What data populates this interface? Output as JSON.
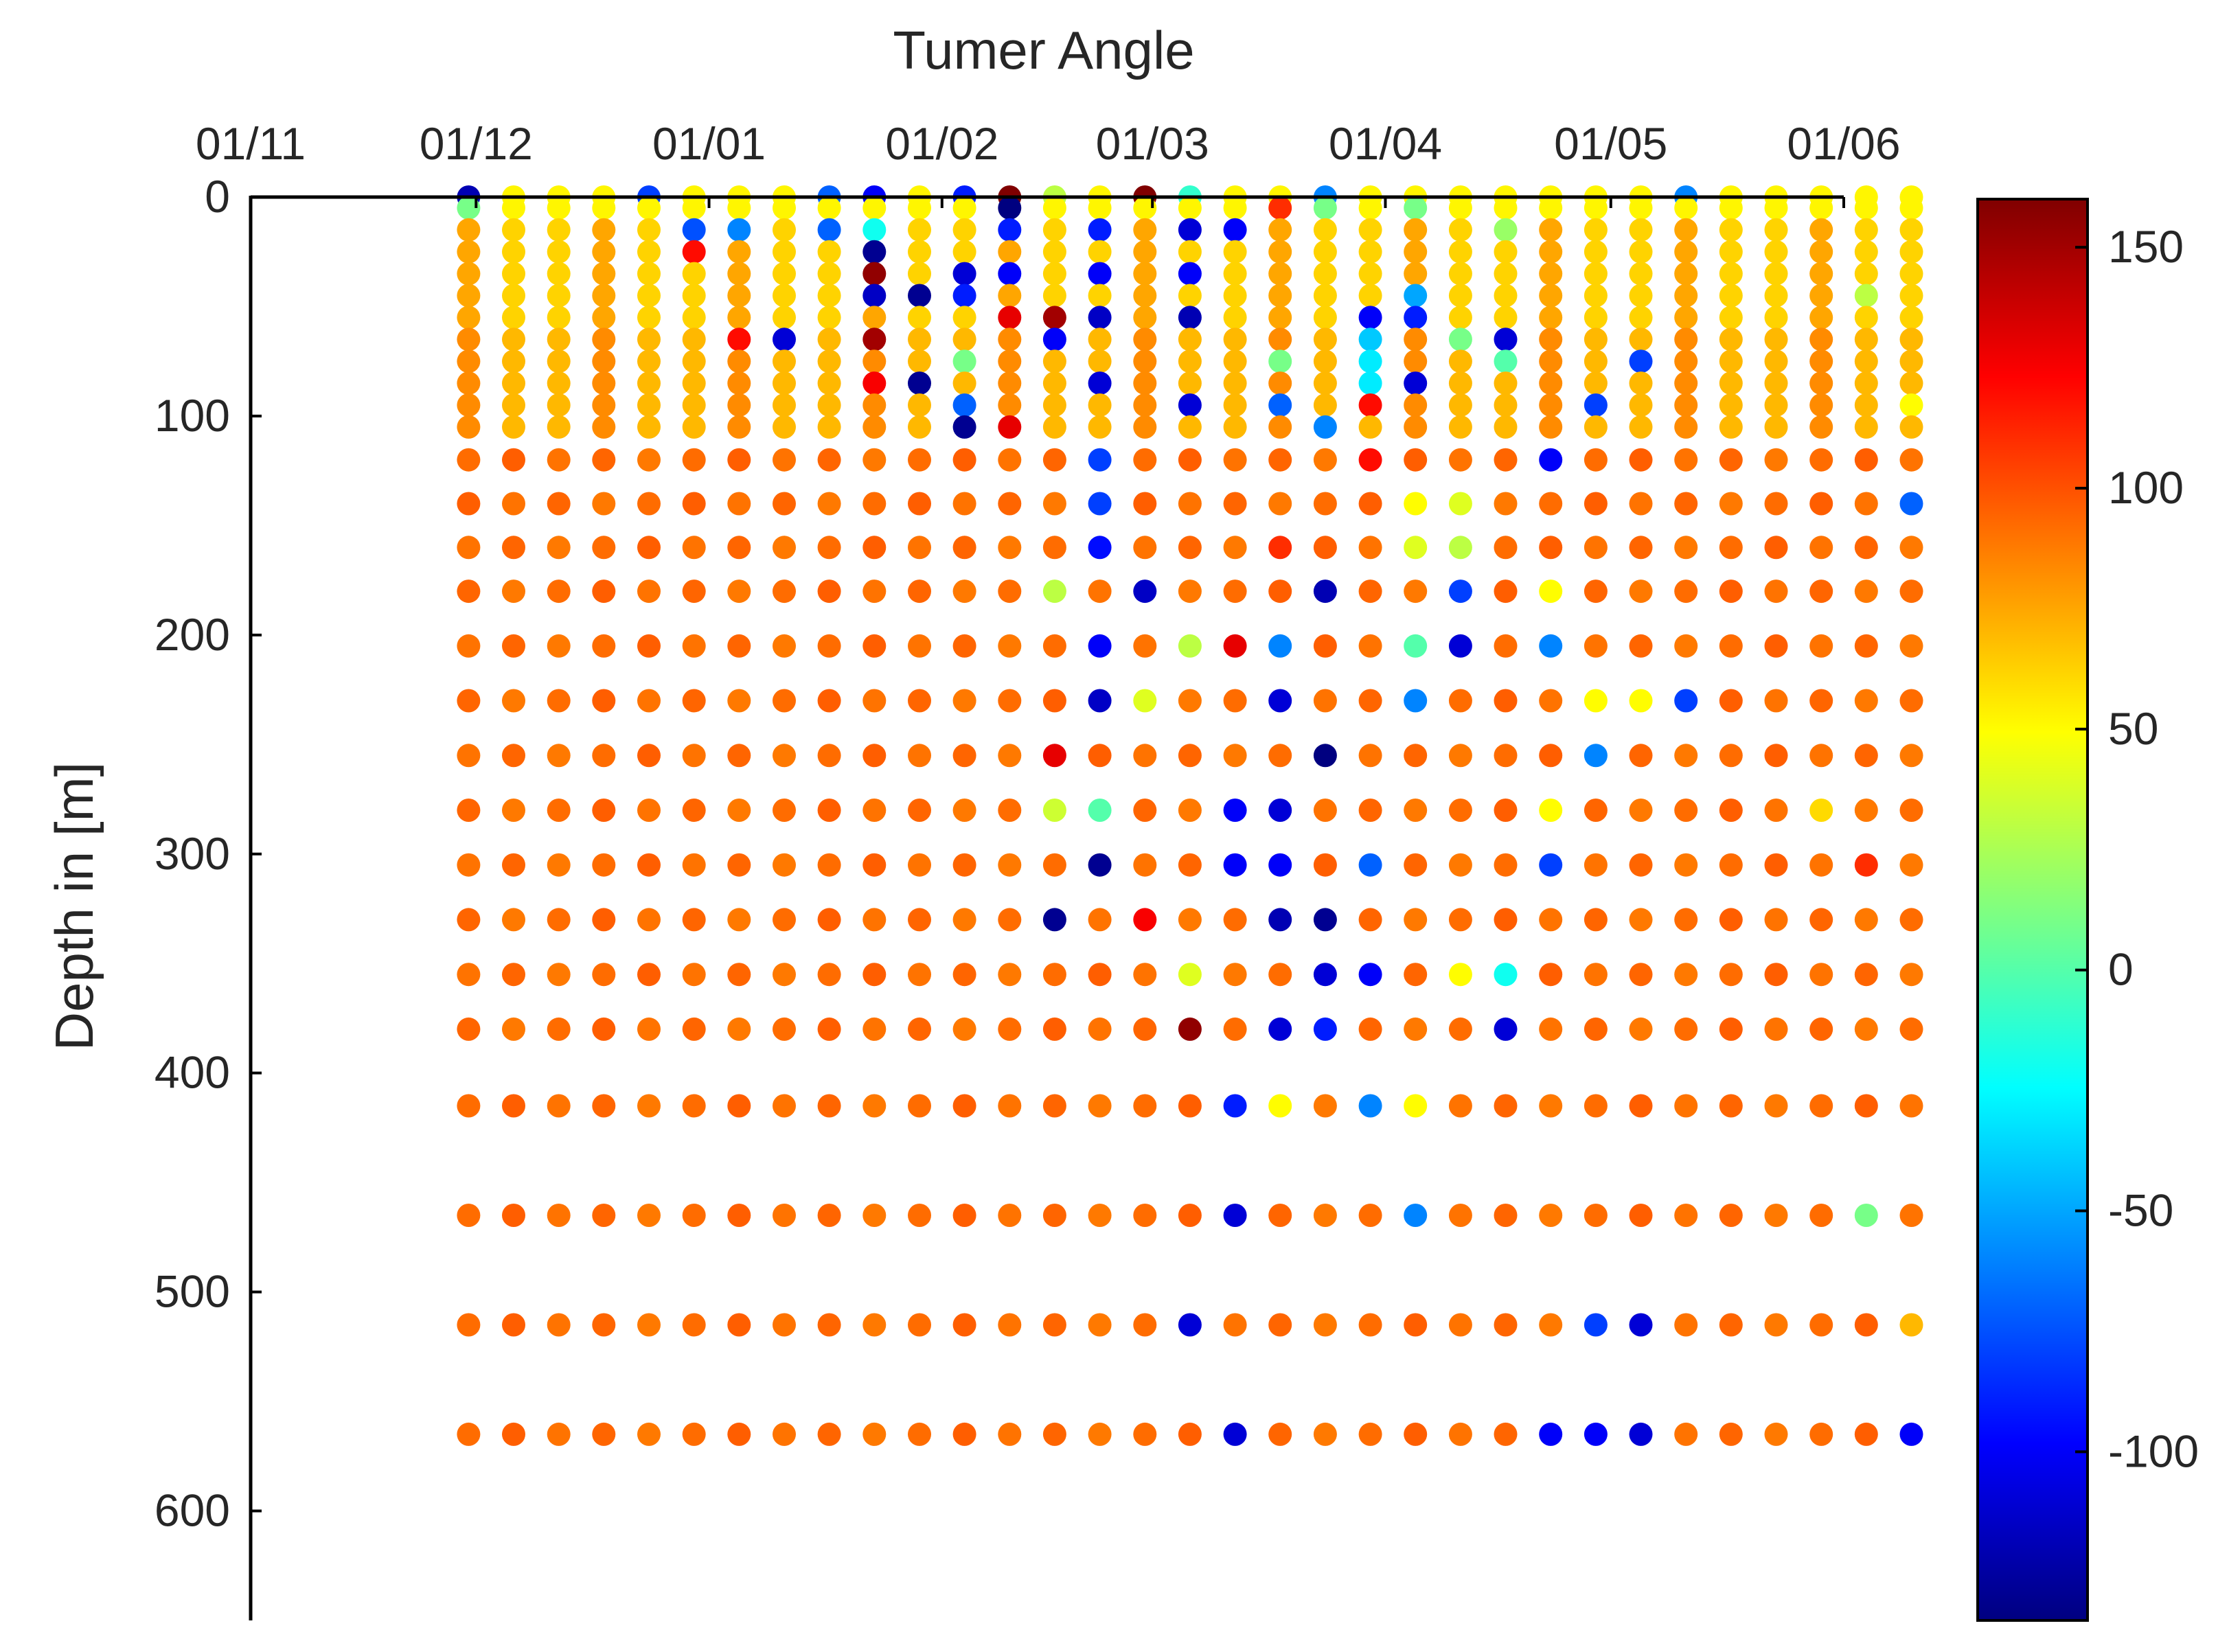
{
  "chart_data": {
    "type": "scatter",
    "title": "Tumer Angle",
    "xlabel": "",
    "ylabel": "Depth in [m]",
    "x_axis_position": "top",
    "y_reversed": true,
    "xlim": [
      "2020-11-01",
      "2021-06-01"
    ],
    "ylim": [
      0,
      650
    ],
    "xticks": [
      "01/11",
      "01/12",
      "01/01",
      "01/02",
      "01/03",
      "01/04",
      "01/05",
      "01/06"
    ],
    "yticks": [
      "0",
      "100",
      "200",
      "300",
      "400",
      "500",
      "600"
    ],
    "colormap": "jet",
    "clim": [
      -135,
      160
    ],
    "colorbar_ticks": [
      "150",
      "100",
      "50",
      "0",
      "-50",
      "-100"
    ],
    "grid": false,
    "legend": "none",
    "dates": [
      "2020-11-30",
      "2020-12-06",
      "2020-12-12",
      "2020-12-18",
      "2020-12-24",
      "2020-12-30",
      "2021-01-05",
      "2021-01-11",
      "2021-01-17",
      "2021-01-23",
      "2021-01-29",
      "2021-02-04",
      "2021-02-10",
      "2021-02-16",
      "2021-02-22",
      "2021-02-28",
      "2021-03-06",
      "2021-03-12",
      "2021-03-18",
      "2021-03-24",
      "2021-03-30",
      "2021-04-05",
      "2021-04-11",
      "2021-04-17",
      "2021-04-23",
      "2021-04-29",
      "2021-05-05",
      "2021-05-11",
      "2021-05-17",
      "2021-05-23",
      "2021-05-29",
      "2021-06-04",
      "2021-06-10"
    ],
    "depths": [
      0,
      5,
      15,
      25,
      35,
      45,
      55,
      65,
      75,
      85,
      95,
      105,
      120,
      140,
      160,
      180,
      205,
      230,
      255,
      280,
      305,
      330,
      355,
      380,
      415,
      465,
      515,
      565
    ],
    "anomalies": [
      {
        "date": "2020-11-30",
        "depth": 0,
        "value": -120
      },
      {
        "date": "2020-11-30",
        "depth": 5,
        "value": 10
      },
      {
        "date": "2020-12-24",
        "depth": 0,
        "value": -80
      },
      {
        "date": "2020-12-30",
        "depth": 15,
        "value": -75
      },
      {
        "date": "2020-12-30",
        "depth": 25,
        "value": 120
      },
      {
        "date": "2021-01-05",
        "depth": 15,
        "value": -60
      },
      {
        "date": "2021-01-05",
        "depth": 65,
        "value": 120
      },
      {
        "date": "2021-01-11",
        "depth": 65,
        "value": -110
      },
      {
        "date": "2021-01-17",
        "depth": 0,
        "value": -70
      },
      {
        "date": "2021-01-17",
        "depth": 15,
        "value": -70
      },
      {
        "date": "2021-01-23",
        "depth": 0,
        "value": -100
      },
      {
        "date": "2021-01-23",
        "depth": 15,
        "value": -20
      },
      {
        "date": "2021-01-23",
        "depth": 25,
        "value": -130
      },
      {
        "date": "2021-01-23",
        "depth": 35,
        "value": 155
      },
      {
        "date": "2021-01-23",
        "depth": 45,
        "value": -115
      },
      {
        "date": "2021-01-23",
        "depth": 65,
        "value": 150
      },
      {
        "date": "2021-01-23",
        "depth": 85,
        "value": 125
      },
      {
        "date": "2021-01-29",
        "depth": 45,
        "value": -130
      },
      {
        "date": "2021-01-29",
        "depth": 85,
        "value": -130
      },
      {
        "date": "2021-02-04",
        "depth": 0,
        "value": -90
      },
      {
        "date": "2021-02-04",
        "depth": 35,
        "value": -110
      },
      {
        "date": "2021-02-04",
        "depth": 45,
        "value": -90
      },
      {
        "date": "2021-02-04",
        "depth": 75,
        "value": 10
      },
      {
        "date": "2021-02-04",
        "depth": 95,
        "value": -70
      },
      {
        "date": "2021-02-04",
        "depth": 105,
        "value": -130
      },
      {
        "date": "2021-02-10",
        "depth": 0,
        "value": 160
      },
      {
        "date": "2021-02-10",
        "depth": 5,
        "value": -135
      },
      {
        "date": "2021-02-10",
        "depth": 15,
        "value": -90
      },
      {
        "date": "2021-02-10",
        "depth": 35,
        "value": -100
      },
      {
        "date": "2021-02-10",
        "depth": 55,
        "value": 130
      },
      {
        "date": "2021-02-10",
        "depth": 105,
        "value": 130
      },
      {
        "date": "2021-02-16",
        "depth": 0,
        "value": 30
      },
      {
        "date": "2021-02-16",
        "depth": 55,
        "value": 150
      },
      {
        "date": "2021-02-16",
        "depth": 65,
        "value": -100
      },
      {
        "date": "2021-02-16",
        "depth": 180,
        "value": 30
      },
      {
        "date": "2021-02-16",
        "depth": 255,
        "value": 130
      },
      {
        "date": "2021-02-16",
        "depth": 280,
        "value": 35
      },
      {
        "date": "2021-02-16",
        "depth": 330,
        "value": -130
      },
      {
        "date": "2021-02-22",
        "depth": 15,
        "value": -90
      },
      {
        "date": "2021-02-22",
        "depth": 35,
        "value": -100
      },
      {
        "date": "2021-02-22",
        "depth": 55,
        "value": -115
      },
      {
        "date": "2021-02-22",
        "depth": 85,
        "value": -110
      },
      {
        "date": "2021-02-22",
        "depth": 120,
        "value": -80
      },
      {
        "date": "2021-02-22",
        "depth": 140,
        "value": -80
      },
      {
        "date": "2021-02-22",
        "depth": 160,
        "value": -95
      },
      {
        "date": "2021-02-22",
        "depth": 205,
        "value": -100
      },
      {
        "date": "2021-02-22",
        "depth": 230,
        "value": -115
      },
      {
        "date": "2021-02-22",
        "depth": 280,
        "value": 0
      },
      {
        "date": "2021-02-22",
        "depth": 305,
        "value": -130
      },
      {
        "date": "2021-02-28",
        "depth": 0,
        "value": 160
      },
      {
        "date": "2021-02-28",
        "depth": 180,
        "value": -115
      },
      {
        "date": "2021-02-28",
        "depth": 230,
        "value": 40
      },
      {
        "date": "2021-02-28",
        "depth": 330,
        "value": 125
      },
      {
        "date": "2021-03-06",
        "depth": 0,
        "value": -10
      },
      {
        "date": "2021-03-06",
        "depth": 15,
        "value": -110
      },
      {
        "date": "2021-03-06",
        "depth": 35,
        "value": -100
      },
      {
        "date": "2021-03-06",
        "depth": 55,
        "value": -120
      },
      {
        "date": "2021-03-06",
        "depth": 95,
        "value": -110
      },
      {
        "date": "2021-03-06",
        "depth": 205,
        "value": 30
      },
      {
        "date": "2021-03-06",
        "depth": 355,
        "value": 40
      },
      {
        "date": "2021-03-06",
        "depth": 380,
        "value": 155
      },
      {
        "date": "2021-03-06",
        "depth": 515,
        "value": -110
      },
      {
        "date": "2021-03-12",
        "depth": 15,
        "value": -100
      },
      {
        "date": "2021-03-12",
        "depth": 205,
        "value": 130
      },
      {
        "date": "2021-03-12",
        "depth": 280,
        "value": -100
      },
      {
        "date": "2021-03-12",
        "depth": 305,
        "value": -100
      },
      {
        "date": "2021-03-12",
        "depth": 415,
        "value": -90
      },
      {
        "date": "2021-03-12",
        "depth": 465,
        "value": -110
      },
      {
        "date": "2021-03-12",
        "depth": 565,
        "value": -110
      },
      {
        "date": "2021-03-18",
        "depth": 5,
        "value": 110
      },
      {
        "date": "2021-03-18",
        "depth": 75,
        "value": 10
      },
      {
        "date": "2021-03-18",
        "depth": 95,
        "value": -70
      },
      {
        "date": "2021-03-18",
        "depth": 160,
        "value": 110
      },
      {
        "date": "2021-03-18",
        "depth": 205,
        "value": -60
      },
      {
        "date": "2021-03-18",
        "depth": 230,
        "value": -110
      },
      {
        "date": "2021-03-18",
        "depth": 280,
        "value": -110
      },
      {
        "date": "2021-03-18",
        "depth": 305,
        "value": -100
      },
      {
        "date": "2021-03-18",
        "depth": 330,
        "value": -120
      },
      {
        "date": "2021-03-18",
        "depth": 380,
        "value": -110
      },
      {
        "date": "2021-03-18",
        "depth": 415,
        "value": 50
      },
      {
        "date": "2021-03-24",
        "depth": 0,
        "value": -60
      },
      {
        "date": "2021-03-24",
        "depth": 5,
        "value": 10
      },
      {
        "date": "2021-03-24",
        "depth": 105,
        "value": -60
      },
      {
        "date": "2021-03-24",
        "depth": 180,
        "value": -120
      },
      {
        "date": "2021-03-24",
        "depth": 255,
        "value": -135
      },
      {
        "date": "2021-03-24",
        "depth": 330,
        "value": -130
      },
      {
        "date": "2021-03-24",
        "depth": 355,
        "value": -110
      },
      {
        "date": "2021-03-24",
        "depth": 380,
        "value": -90
      },
      {
        "date": "2021-03-30",
        "depth": 55,
        "value": -100
      },
      {
        "date": "2021-03-30",
        "depth": 65,
        "value": -40
      },
      {
        "date": "2021-03-30",
        "depth": 75,
        "value": -30
      },
      {
        "date": "2021-03-30",
        "depth": 85,
        "value": -30
      },
      {
        "date": "2021-03-30",
        "depth": 95,
        "value": 120
      },
      {
        "date": "2021-03-30",
        "depth": 120,
        "value": 120
      },
      {
        "date": "2021-03-30",
        "depth": 305,
        "value": -70
      },
      {
        "date": "2021-03-30",
        "depth": 355,
        "value": -100
      },
      {
        "date": "2021-03-30",
        "depth": 415,
        "value": -60
      },
      {
        "date": "2021-04-05",
        "depth": 5,
        "value": 10
      },
      {
        "date": "2021-04-05",
        "depth": 45,
        "value": -50
      },
      {
        "date": "2021-04-05",
        "depth": 55,
        "value": -90
      },
      {
        "date": "2021-04-05",
        "depth": 85,
        "value": -110
      },
      {
        "date": "2021-04-05",
        "depth": 140,
        "value": 50
      },
      {
        "date": "2021-04-05",
        "depth": 160,
        "value": 40
      },
      {
        "date": "2021-04-05",
        "depth": 205,
        "value": 0
      },
      {
        "date": "2021-04-05",
        "depth": 230,
        "value": -60
      },
      {
        "date": "2021-04-05",
        "depth": 415,
        "value": 50
      },
      {
        "date": "2021-04-05",
        "depth": 465,
        "value": -60
      },
      {
        "date": "2021-04-11",
        "depth": 65,
        "value": 10
      },
      {
        "date": "2021-04-11",
        "depth": 140,
        "value": 40
      },
      {
        "date": "2021-04-11",
        "depth": 160,
        "value": 30
      },
      {
        "date": "2021-04-11",
        "depth": 180,
        "value": -80
      },
      {
        "date": "2021-04-11",
        "depth": 205,
        "value": -110
      },
      {
        "date": "2021-04-11",
        "depth": 355,
        "value": 50
      },
      {
        "date": "2021-04-17",
        "depth": 15,
        "value": 20
      },
      {
        "date": "2021-04-17",
        "depth": 65,
        "value": -110
      },
      {
        "date": "2021-04-17",
        "depth": 75,
        "value": 0
      },
      {
        "date": "2021-04-17",
        "depth": 355,
        "value": -20
      },
      {
        "date": "2021-04-17",
        "depth": 380,
        "value": -110
      },
      {
        "date": "2021-04-23",
        "depth": 120,
        "value": -100
      },
      {
        "date": "2021-04-23",
        "depth": 180,
        "value": 50
      },
      {
        "date": "2021-04-23",
        "depth": 205,
        "value": -60
      },
      {
        "date": "2021-04-23",
        "depth": 280,
        "value": 50
      },
      {
        "date": "2021-04-23",
        "depth": 305,
        "value": -80
      },
      {
        "date": "2021-04-23",
        "depth": 565,
        "value": -100
      },
      {
        "date": "2021-04-29",
        "depth": 95,
        "value": -80
      },
      {
        "date": "2021-04-29",
        "depth": 230,
        "value": 50
      },
      {
        "date": "2021-04-29",
        "depth": 255,
        "value": -60
      },
      {
        "date": "2021-04-29",
        "depth": 515,
        "value": -80
      },
      {
        "date": "2021-04-29",
        "depth": 565,
        "value": -100
      },
      {
        "date": "2021-05-05",
        "depth": 75,
        "value": -80
      },
      {
        "date": "2021-05-05",
        "depth": 230,
        "value": 50
      },
      {
        "date": "2021-05-05",
        "depth": 515,
        "value": -110
      },
      {
        "date": "2021-05-05",
        "depth": 565,
        "value": -110
      },
      {
        "date": "2021-05-11",
        "depth": 0,
        "value": -60
      },
      {
        "date": "2021-05-11",
        "depth": 230,
        "value": -80
      },
      {
        "date": "2021-05-29",
        "depth": 280,
        "value": 60
      },
      {
        "date": "2021-06-04",
        "depth": 45,
        "value": 30
      },
      {
        "date": "2021-06-04",
        "depth": 305,
        "value": 110
      },
      {
        "date": "2021-06-04",
        "depth": 465,
        "value": 10
      },
      {
        "date": "2021-06-10",
        "depth": 95,
        "value": 50
      },
      {
        "date": "2021-06-10",
        "depth": 140,
        "value": -70
      },
      {
        "date": "2021-06-10",
        "depth": 515,
        "value": 70
      },
      {
        "date": "2021-06-10",
        "depth": 565,
        "value": -100
      }
    ]
  }
}
